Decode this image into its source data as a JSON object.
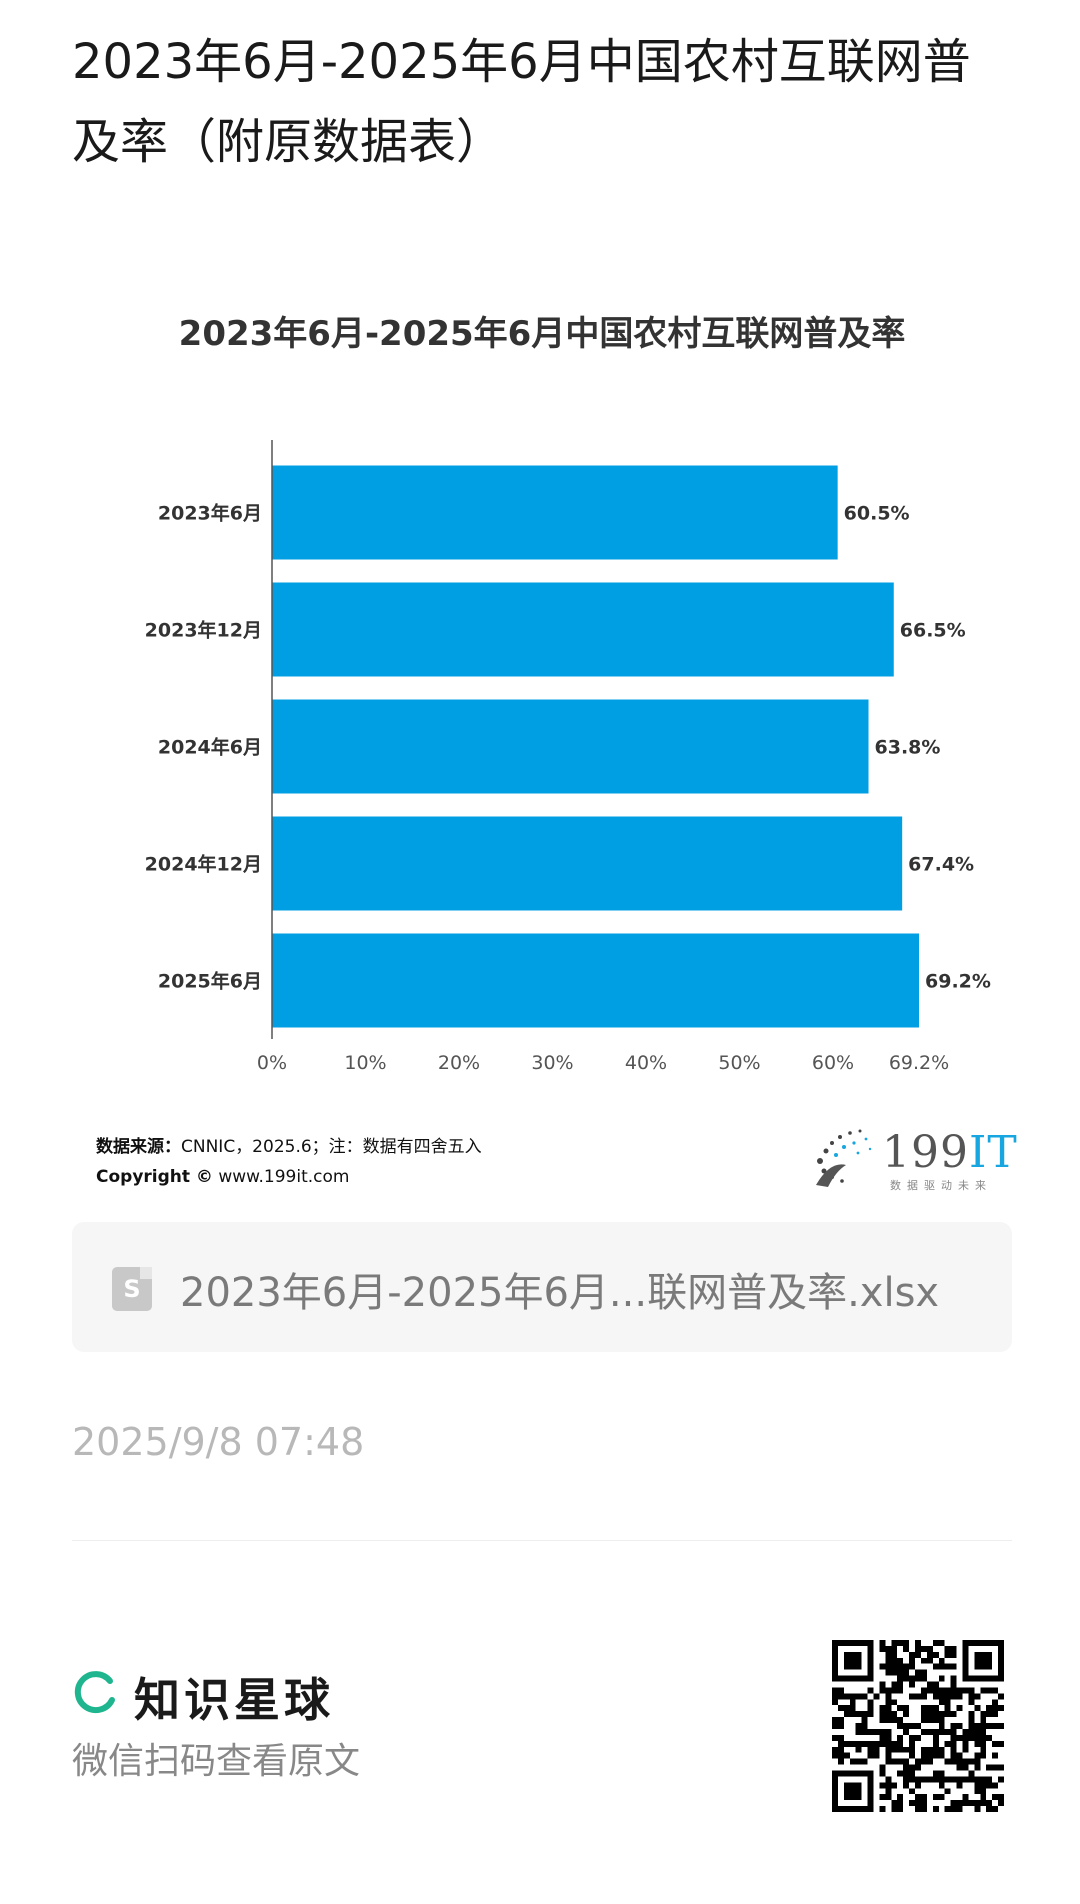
{
  "header": {
    "title": "2023年6月-2025年6月中国农村互联网普及率（附原数据表）"
  },
  "chart": {
    "footnote_source_label": "数据来源：",
    "footnote_source_text": "CNNIC，2025.6；注：数据有四舍五入",
    "footnote_copyright_label": "Copyright ©",
    "footnote_copyright_text": " www.199it.com",
    "brand_name_digits": "199",
    "brand_name_letters": "IT",
    "brand_slogan": "数据驱动未来"
  },
  "chart_data": {
    "type": "bar",
    "orientation": "horizontal",
    "title": "2023年6月-2025年6月中国农村互联网普及率",
    "categories": [
      "2023年6月",
      "2023年12月",
      "2024年6月",
      "2024年12月",
      "2025年6月"
    ],
    "values": [
      60.5,
      66.5,
      63.8,
      67.4,
      69.2
    ],
    "data_labels": [
      "60.5%",
      "66.5%",
      "63.8%",
      "67.4%",
      "69.2%"
    ],
    "x_ticks": [
      "0%",
      "10%",
      "20%",
      "30%",
      "40%",
      "50%",
      "60%",
      "69.2%"
    ],
    "x_tick_values": [
      0,
      10,
      20,
      30,
      40,
      50,
      60,
      69.2
    ],
    "xlim": [
      0,
      69.2
    ],
    "bar_color": "#009fe3",
    "grid": false,
    "legend": "none"
  },
  "attachment": {
    "file_icon_letter": "S",
    "file_name": "2023年6月-2025年6月...联网普及率.xlsx"
  },
  "post": {
    "timestamp": "2025/9/8 07:48"
  },
  "footer": {
    "app_name": "知识星球",
    "scan_hint": "微信扫码查看原文",
    "logo_icon": "zsxq-ring-icon",
    "logo_color": "#1fb58f"
  }
}
